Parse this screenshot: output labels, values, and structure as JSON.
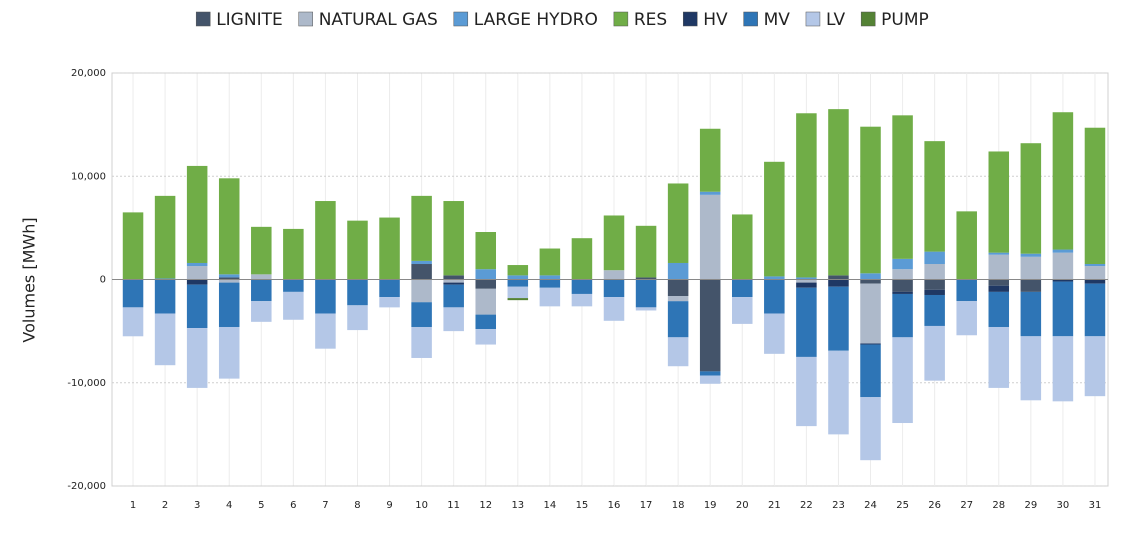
{
  "chart_data": {
    "type": "bar",
    "stacked": true,
    "y_label": "Volumes [MWh]",
    "categories": [
      "1",
      "2",
      "3",
      "4",
      "5",
      "6",
      "7",
      "8",
      "9",
      "10",
      "11",
      "12",
      "13",
      "14",
      "15",
      "16",
      "17",
      "18",
      "19",
      "20",
      "21",
      "22",
      "23",
      "24",
      "25",
      "26",
      "27",
      "28",
      "29",
      "30",
      "31"
    ],
    "ylim": [
      -20000,
      20000
    ],
    "yticks": [
      {
        "value": -20000,
        "label": "-20,000"
      },
      {
        "value": -10000,
        "label": "-10,000"
      },
      0,
      {
        "value": 10000,
        "label": "10,000"
      },
      {
        "value": 20000,
        "label": "20,000"
      }
    ],
    "grid": true,
    "legend": "top",
    "series": [
      {
        "name": "LIGNITE",
        "color": "#44546a",
        "values": [
          0,
          0,
          0,
          200,
          0,
          0,
          0,
          0,
          0,
          1500,
          400,
          -900,
          0,
          0,
          0,
          0,
          200,
          -1600,
          -8900,
          0,
          0,
          0,
          400,
          -400,
          -1200,
          -1000,
          0,
          -600,
          -1200,
          0,
          0
        ]
      },
      {
        "name": "NATURAL GAS",
        "color": "#adb9ca",
        "values": [
          0,
          0,
          1300,
          -300,
          500,
          0,
          0,
          0,
          0,
          -2200,
          -300,
          -2500,
          0,
          0,
          0,
          900,
          0,
          -500,
          8200,
          0,
          0,
          -300,
          0,
          -5800,
          1000,
          1500,
          0,
          2400,
          2200,
          2600,
          1300
        ]
      },
      {
        "name": "LARGE HYDRO",
        "color": "#5b9bd5",
        "values": [
          0,
          100,
          300,
          300,
          0,
          0,
          0,
          0,
          0,
          300,
          0,
          1000,
          400,
          400,
          0,
          0,
          0,
          1600,
          300,
          0,
          300,
          200,
          0,
          600,
          1000,
          1200,
          0,
          200,
          300,
          300,
          200
        ]
      },
      {
        "name": "RES",
        "color": "#70ad47",
        "values": [
          6500,
          8000,
          9400,
          9300,
          4600,
          4900,
          7600,
          5700,
          6000,
          6300,
          7200,
          3600,
          1000,
          2600,
          4000,
          5300,
          5000,
          7700,
          6100,
          6300,
          11100,
          15900,
          16100,
          14200,
          13900,
          10700,
          6600,
          9800,
          10700,
          13300,
          13200
        ]
      },
      {
        "name": "HV",
        "color": "#1f3864",
        "values": [
          0,
          0,
          -500,
          0,
          0,
          0,
          0,
          0,
          0,
          0,
          -200,
          0,
          0,
          0,
          0,
          0,
          0,
          0,
          0,
          0,
          0,
          -500,
          -700,
          -100,
          -200,
          -500,
          0,
          -600,
          0,
          -200,
          -400
        ]
      },
      {
        "name": "MV",
        "color": "#2e75b6",
        "values": [
          -2700,
          -3300,
          -4200,
          -4300,
          -2100,
          -1200,
          -3300,
          -2500,
          -1700,
          -2400,
          -2200,
          -1400,
          -700,
          -800,
          -1400,
          -1700,
          -2700,
          -3500,
          -400,
          -1700,
          -3300,
          -6700,
          -6200,
          -5100,
          -4200,
          -3000,
          -2100,
          -3400,
          -4300,
          -5300,
          -5100
        ]
      },
      {
        "name": "LV",
        "color": "#b4c7e7",
        "values": [
          -2800,
          -5000,
          -5800,
          -5000,
          -2000,
          -2700,
          -3400,
          -2400,
          -1000,
          -3000,
          -2300,
          -1500,
          -1100,
          -1800,
          -1200,
          -2300,
          -300,
          -2800,
          -800,
          -2600,
          -3900,
          -6700,
          -8100,
          -6100,
          -8300,
          -5300,
          -3300,
          -5900,
          -6200,
          -6300,
          -5800
        ]
      },
      {
        "name": "PUMP",
        "color": "#548235",
        "values": [
          0,
          0,
          0,
          0,
          0,
          0,
          0,
          0,
          0,
          0,
          0,
          0,
          -200,
          0,
          0,
          0,
          0,
          0,
          0,
          0,
          0,
          0,
          0,
          0,
          0,
          0,
          0,
          0,
          0,
          0,
          0
        ]
      }
    ]
  }
}
